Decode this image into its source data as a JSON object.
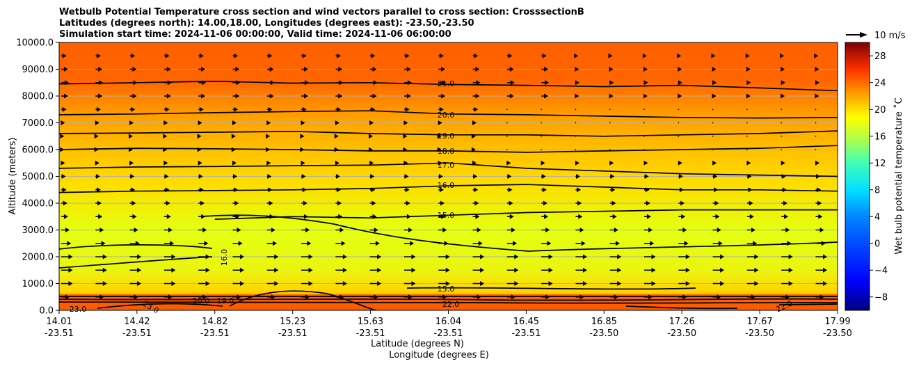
{
  "chart_data": {
    "type": "heatmap",
    "title_lines": [
      "Wetbulb Potential Temperature cross section and wind vectors parallel to cross section: CrosssectionB",
      "Latitudes (degrees north): 14.00,18.00, Longitudes (degrees east): -23.50,-23.50",
      "Simulation start time: 2024-11-06 00:00:00, Valid time: 2024-11-06 06:00:00"
    ],
    "xlabel_lat": "Latitude (degrees N)",
    "xlabel_lon": "Longitude (degrees E)",
    "ylabel": "Altitude (meters)",
    "ylim": [
      0,
      10000
    ],
    "y_ticks": [
      "0.0",
      "1000.0",
      "2000.0",
      "3000.0",
      "4000.0",
      "5000.0",
      "6000.0",
      "7000.0",
      "8000.0",
      "9000.0",
      "10000.0"
    ],
    "x_ticks": [
      {
        "lat": "14.01",
        "lon": "-23.51"
      },
      {
        "lat": "14.42",
        "lon": "-23.51"
      },
      {
        "lat": "14.82",
        "lon": "-23.51"
      },
      {
        "lat": "15.23",
        "lon": "-23.51"
      },
      {
        "lat": "15.63",
        "lon": "-23.51"
      },
      {
        "lat": "16.04",
        "lon": "-23.51"
      },
      {
        "lat": "16.45",
        "lon": "-23.51"
      },
      {
        "lat": "16.85",
        "lon": "-23.50"
      },
      {
        "lat": "17.26",
        "lon": "-23.50"
      },
      {
        "lat": "17.67",
        "lon": "-23.50"
      },
      {
        "lat": "17.99",
        "lon": "-23.50"
      }
    ],
    "grid": "horizontal",
    "colorbar": {
      "label": "Wet bulb potential temperature ˚C",
      "range": [
        -10,
        30
      ],
      "ticks": [
        "−8",
        "−4",
        "0",
        "4",
        "8",
        "12",
        "16",
        "20",
        "24",
        "28"
      ]
    },
    "quiver_key": {
      "label": "10 m/s"
    },
    "contours": [
      {
        "level": 21,
        "label": "21.0",
        "altitudes": [
          8450,
          8500,
          8550,
          8480,
          8500,
          8430,
          8400,
          8350,
          8400,
          8300,
          8200
        ]
      },
      {
        "level": 20,
        "label": "20.0",
        "altitudes": [
          7300,
          7330,
          7380,
          7420,
          7450,
          7330,
          7300,
          7250,
          7200,
          7180,
          7200
        ]
      },
      {
        "level": 19,
        "label": "19.0",
        "altitudes": [
          6600,
          6620,
          6650,
          6680,
          6600,
          6550,
          6550,
          6500,
          6550,
          6600,
          6700
        ]
      },
      {
        "level": 18,
        "label": "18.0",
        "altitudes": [
          6000,
          6050,
          6030,
          6000,
          5950,
          5950,
          5900,
          5950,
          6000,
          6050,
          6150
        ]
      },
      {
        "level": 17,
        "label": "17.0",
        "altitudes": [
          5300,
          5350,
          5370,
          5400,
          5420,
          5500,
          5300,
          5200,
          5100,
          5050,
          5000
        ]
      },
      {
        "level": 16,
        "label": "16.0",
        "altitudes": [
          4400,
          4450,
          4470,
          4500,
          4550,
          4650,
          4700,
          4600,
          4500,
          4500,
          4450
        ]
      },
      {
        "level": 15,
        "label": "15.0",
        "altitudes": [
          null,
          null,
          3400,
          3500,
          3450,
          3550,
          3650,
          3700,
          3750,
          3750,
          3750
        ]
      }
    ],
    "contour_labels": [
      {
        "text": "21.0"
      },
      {
        "text": "20.0"
      },
      {
        "text": "19.0"
      },
      {
        "text": "18.0"
      },
      {
        "text": "17.0"
      },
      {
        "text": "16.0"
      },
      {
        "text": "15.0"
      },
      {
        "text": "16.0"
      },
      {
        "text": "15.0"
      },
      {
        "text": "22.0"
      },
      {
        "text": "23.0"
      },
      {
        "text": "23.0"
      },
      {
        "text": "22.0"
      },
      {
        "text": "20.0"
      },
      {
        "text": "19.0"
      }
    ],
    "wind_profile": [
      {
        "altitude": 9500,
        "u": 3.5
      },
      {
        "altitude": 9000,
        "u": 4.5
      },
      {
        "altitude": 8500,
        "u": 5.0
      },
      {
        "altitude": 8000,
        "u": 4.5
      },
      {
        "altitude": 7500,
        "u": 3.5
      },
      {
        "altitude": 7000,
        "u": 2.5
      },
      {
        "altitude": 6500,
        "u": 2.0
      },
      {
        "altitude": 6000,
        "u": 2.0
      },
      {
        "altitude": 5500,
        "u": 2.5
      },
      {
        "altitude": 5000,
        "u": 3.0
      },
      {
        "altitude": 4500,
        "u": 3.5
      },
      {
        "altitude": 4000,
        "u": 4.0
      },
      {
        "altitude": 3500,
        "u": 4.5
      },
      {
        "altitude": 3000,
        "u": 5.5
      },
      {
        "altitude": 2500,
        "u": 6.5
      },
      {
        "altitude": 2000,
        "u": 7.5
      },
      {
        "altitude": 1500,
        "u": 7.5
      },
      {
        "altitude": 1000,
        "u": 7.5
      },
      {
        "altitude": 500,
        "u": 5.5
      }
    ],
    "colors": {
      "top_band": "#ff6000",
      "upper_mid": "#ff9a00",
      "mid": "#ffd000",
      "lower_mid": "#eef000",
      "low_band": "#e4ff13",
      "surface_band": "#ff5a00"
    }
  }
}
